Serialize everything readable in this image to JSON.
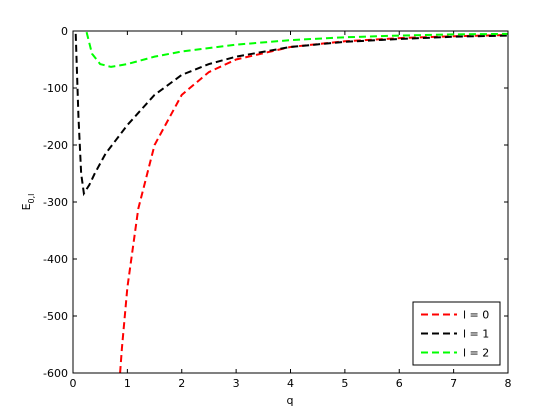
{
  "chart_data": {
    "type": "line",
    "xlabel": "q",
    "ylabel": "E",
    "ylabel_sub": "0,l",
    "xlim": [
      0,
      8
    ],
    "ylim": [
      -600,
      0
    ],
    "xticks": [
      0,
      1,
      2,
      3,
      4,
      5,
      6,
      7,
      8
    ],
    "yticks": [
      -600,
      -500,
      -400,
      -300,
      -200,
      -100,
      0
    ],
    "legend": "lower right",
    "series": [
      {
        "name": "l = 0",
        "color": "#ff0000",
        "x": [
          0.866,
          0.9,
          1,
          1.2,
          1.5,
          2,
          2.5,
          3,
          4,
          5,
          6,
          7,
          8
        ],
        "values": [
          -600,
          -556,
          -450,
          -312,
          -200,
          -112,
          -72,
          -50,
          -28,
          -18,
          -12.5,
          -9.2,
          -7
        ]
      },
      {
        "name": "l = 1",
        "color": "#000000",
        "x": [
          0.05,
          0.1,
          0.15,
          0.2,
          0.3,
          0.4,
          0.6,
          0.8,
          1,
          1.5,
          2,
          2.5,
          3,
          4,
          5,
          6,
          7,
          8
        ],
        "values": [
          -5,
          -150,
          -250,
          -285,
          -270,
          -250,
          -215,
          -190,
          -165,
          -112,
          -77,
          -58,
          -45,
          -28,
          -19,
          -14,
          -10,
          -8
        ]
      },
      {
        "name": "l = 2",
        "color": "#00ff00",
        "x": [
          0.25,
          0.35,
          0.5,
          0.7,
          1,
          1.5,
          2,
          3,
          4,
          5,
          6,
          7,
          8
        ],
        "values": [
          -2,
          -40,
          -58,
          -63,
          -58,
          -45,
          -36,
          -24,
          -16,
          -11,
          -8,
          -6,
          -5
        ]
      }
    ]
  }
}
